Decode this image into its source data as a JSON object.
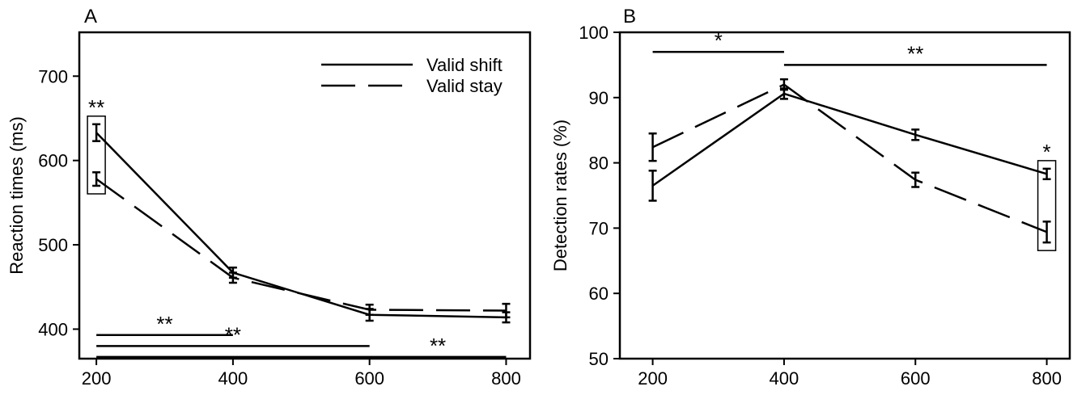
{
  "chart_data": [
    {
      "panel_label": "A",
      "type": "line",
      "xlabel": "",
      "ylabel": "Reaction times (ms)",
      "xlim": [
        175,
        835
      ],
      "ylim": [
        365,
        752
      ],
      "xticks": [
        "200",
        "400",
        "600",
        "800"
      ],
      "yticks": [
        "400",
        "500",
        "600",
        "700"
      ],
      "x": [
        200,
        400,
        600,
        800
      ],
      "series": [
        {
          "name": "Valid shift",
          "style": "solid",
          "values": [
            633,
            467,
            417,
            414
          ],
          "errors": [
            10,
            6,
            7,
            6
          ]
        },
        {
          "name": "Valid stay",
          "style": "dashed",
          "values": [
            578,
            461,
            423,
            422
          ],
          "errors": [
            8,
            6,
            6,
            8
          ]
        }
      ],
      "legend_position": "top-right",
      "box_at_x": [
        200
      ],
      "box_marker": "**",
      "comparisons": [
        {
          "from": 200,
          "to": 400,
          "y": 393,
          "label": "**"
        },
        {
          "from": 200,
          "to": 600,
          "y": 380,
          "label": "**"
        },
        {
          "from": 200,
          "to": 800,
          "y": 367,
          "label": "**"
        }
      ]
    },
    {
      "panel_label": "B",
      "type": "line",
      "xlabel": "",
      "ylabel": "Detection rates (%)",
      "xlim": [
        150,
        835
      ],
      "ylim": [
        50,
        100
      ],
      "xticks": [
        "200",
        "400",
        "600",
        "800"
      ],
      "yticks": [
        "50",
        "60",
        "70",
        "80",
        "90",
        "100"
      ],
      "x": [
        200,
        400,
        600,
        800
      ],
      "series": [
        {
          "name": "Valid shift",
          "style": "solid",
          "values": [
            76.5,
            90.6,
            84.3,
            78.3
          ],
          "errors": [
            2.3,
            0.8,
            0.8,
            0.8
          ]
        },
        {
          "name": "Valid stay",
          "style": "dashed",
          "values": [
            82.4,
            92.0,
            77.4,
            69.4
          ],
          "errors": [
            2.1,
            0.8,
            1.1,
            1.6
          ]
        }
      ],
      "box_at_x": [
        800
      ],
      "box_marker": "*",
      "comparisons": [
        {
          "from": 200,
          "to": 400,
          "y": 97,
          "label": "*"
        },
        {
          "from": 400,
          "to": 800,
          "y": 95,
          "label": "**"
        }
      ]
    }
  ]
}
